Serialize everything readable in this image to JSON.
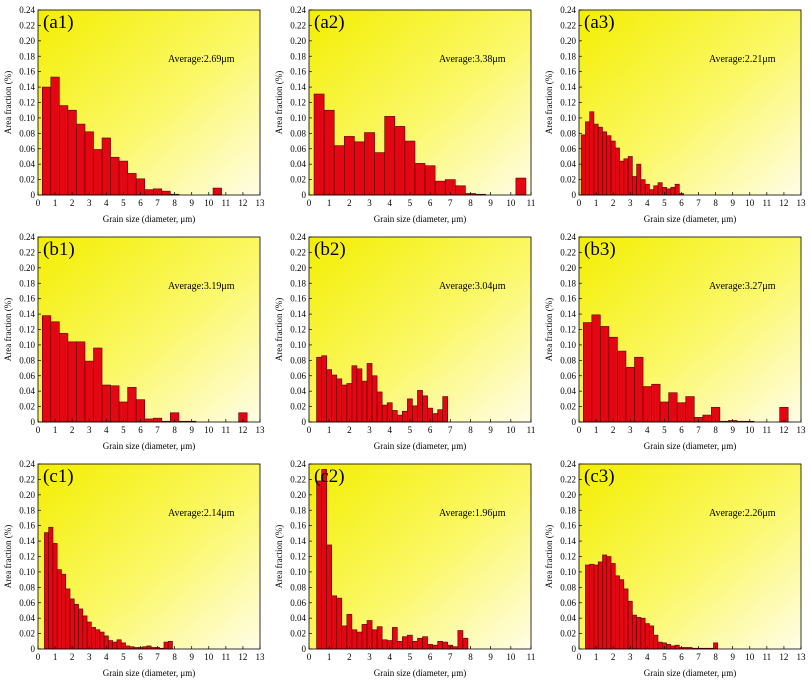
{
  "chart_data": [
    {
      "id": "a1",
      "type": "bar",
      "panel_label": "(a1)",
      "annotation": "Average:2.69μm",
      "xlabel": "Grain size (diameter, μm)",
      "ylabel": "Area fraction (%)",
      "xlim": [
        0,
        13
      ],
      "xticks": [
        0,
        1,
        2,
        3,
        4,
        5,
        6,
        7,
        8,
        9,
        10,
        11,
        12,
        13
      ],
      "ylim": [
        0,
        0.24
      ],
      "yticks": [
        "0",
        "0.02",
        "0.04",
        "0.06",
        "0.08",
        "0.10",
        "0.12",
        "0.14",
        "0.16",
        "0.18",
        "0.20",
        "0.22",
        "0.24"
      ],
      "bin_width": 0.5,
      "x": [
        0.5,
        1,
        1.5,
        2,
        2.5,
        3,
        3.5,
        4,
        4.5,
        5,
        5.5,
        6,
        6.5,
        7,
        7.5,
        8,
        10.5
      ],
      "values": [
        0.14,
        0.153,
        0.116,
        0.11,
        0.092,
        0.082,
        0.059,
        0.074,
        0.049,
        0.044,
        0.028,
        0.021,
        0.007,
        0.008,
        0.005,
        0.001,
        0.009
      ]
    },
    {
      "id": "a2",
      "type": "bar",
      "panel_label": "(a2)",
      "annotation": "Average:3.38μm",
      "xlabel": "Grain size (diameter, μm)",
      "ylabel": "Area fraction (%)",
      "xlim": [
        0,
        11
      ],
      "xticks": [
        0,
        1,
        2,
        3,
        4,
        5,
        6,
        7,
        8,
        9,
        10,
        11
      ],
      "ylim": [
        0,
        0.24
      ],
      "yticks": [
        "0",
        "0.02",
        "0.04",
        "0.06",
        "0.08",
        "0.10",
        "0.12",
        "0.14",
        "0.16",
        "0.18",
        "0.20",
        "0.22",
        "0.24"
      ],
      "bin_width": 0.5,
      "x": [
        0.5,
        1,
        1.5,
        2,
        2.5,
        3,
        3.5,
        4,
        4.5,
        5,
        5.5,
        6,
        6.5,
        7,
        7.5,
        8,
        8.5,
        10.5
      ],
      "values": [
        0.131,
        0.11,
        0.064,
        0.076,
        0.069,
        0.081,
        0.055,
        0.102,
        0.089,
        0.07,
        0.041,
        0.038,
        0.018,
        0.02,
        0.012,
        0.002,
        0.001,
        0.022
      ]
    },
    {
      "id": "a3",
      "type": "bar",
      "panel_label": "(a3)",
      "annotation": "Average:2.21μm",
      "xlabel": "Grain size (diameter, μm)",
      "ylabel": "Area fraction (%)",
      "xlim": [
        0,
        13
      ],
      "xticks": [
        0,
        1,
        2,
        3,
        4,
        5,
        6,
        7,
        8,
        9,
        10,
        11,
        12,
        13
      ],
      "ylim": [
        0,
        0.24
      ],
      "yticks": [
        "0",
        "0.02",
        "0.04",
        "0.06",
        "0.08",
        "0.10",
        "0.12",
        "0.14",
        "0.16",
        "0.18",
        "0.20",
        "0.22",
        "0.24"
      ],
      "bin_width": 0.25,
      "x": [
        0.25,
        0.5,
        0.75,
        1,
        1.25,
        1.5,
        1.75,
        2,
        2.25,
        2.5,
        2.75,
        3,
        3.25,
        3.5,
        3.75,
        4,
        4.25,
        4.5,
        4.75,
        5,
        5.25,
        5.5,
        5.75,
        6
      ],
      "values": [
        0.078,
        0.095,
        0.108,
        0.092,
        0.088,
        0.082,
        0.077,
        0.07,
        0.061,
        0.044,
        0.047,
        0.05,
        0.024,
        0.04,
        0.02,
        0.014,
        0.007,
        0.012,
        0.016,
        0.01,
        0.008,
        0.01,
        0.014,
        0.002
      ]
    },
    {
      "id": "b1",
      "type": "bar",
      "panel_label": "(b1)",
      "annotation": "Average:3.19μm",
      "xlabel": "Grain size (diameter, μm)",
      "ylabel": "Area fraction (%)",
      "xlim": [
        0,
        13
      ],
      "xticks": [
        0,
        1,
        2,
        3,
        4,
        5,
        6,
        7,
        8,
        9,
        10,
        11,
        12,
        13
      ],
      "ylim": [
        0,
        0.24
      ],
      "yticks": [
        "0",
        "0.02",
        "0.04",
        "0.06",
        "0.08",
        "0.10",
        "0.12",
        "0.14",
        "0.16",
        "0.18",
        "0.20",
        "0.22",
        "0.24"
      ],
      "bin_width": 0.5,
      "x": [
        0.5,
        1,
        1.5,
        2,
        2.5,
        3,
        3.5,
        4,
        4.5,
        5,
        5.5,
        6,
        6.5,
        7,
        7.5,
        8,
        8.5,
        9,
        12
      ],
      "values": [
        0.138,
        0.13,
        0.115,
        0.104,
        0.104,
        0.079,
        0.096,
        0.048,
        0.047,
        0.026,
        0.045,
        0.029,
        0.004,
        0.005,
        0.001,
        0.012,
        0.001,
        0.001,
        0.012
      ]
    },
    {
      "id": "b2",
      "type": "bar",
      "panel_label": "(b2)",
      "annotation": "Average:3.04μm",
      "xlabel": "Grain size (diameter, μm)",
      "ylabel": "Area fraction (%)",
      "xlim": [
        0,
        11
      ],
      "xticks": [
        0,
        1,
        2,
        3,
        4,
        5,
        6,
        7,
        8,
        9,
        10,
        11
      ],
      "ylim": [
        0,
        0.24
      ],
      "yticks": [
        "0",
        "0.02",
        "0.04",
        "0.06",
        "0.08",
        "0.10",
        "0.12",
        "0.14",
        "0.16",
        "0.18",
        "0.20",
        "0.22",
        "0.24"
      ],
      "bin_width": 0.25,
      "x": [
        0.5,
        0.75,
        1,
        1.25,
        1.5,
        1.75,
        2,
        2.25,
        2.5,
        2.75,
        3,
        3.25,
        3.5,
        3.75,
        4,
        4.25,
        4.5,
        4.75,
        5,
        5.25,
        5.5,
        5.75,
        6,
        6.25,
        6.5,
        6.75
      ],
      "values": [
        0.084,
        0.086,
        0.068,
        0.061,
        0.056,
        0.048,
        0.05,
        0.073,
        0.069,
        0.053,
        0.076,
        0.06,
        0.039,
        0.022,
        0.025,
        0.015,
        0.009,
        0.014,
        0.03,
        0.021,
        0.041,
        0.034,
        0.018,
        0.011,
        0.016,
        0.033
      ]
    },
    {
      "id": "b3",
      "type": "bar",
      "panel_label": "(b3)",
      "annotation": "Average:3.27μm",
      "xlabel": "Grain size (diameter, μm)",
      "ylabel": "Area fraction (%)",
      "xlim": [
        0,
        13
      ],
      "xticks": [
        0,
        1,
        2,
        3,
        4,
        5,
        6,
        7,
        8,
        9,
        10,
        11,
        12,
        13
      ],
      "ylim": [
        0,
        0.24
      ],
      "yticks": [
        "0",
        "0.02",
        "0.04",
        "0.06",
        "0.08",
        "0.10",
        "0.12",
        "0.14",
        "0.16",
        "0.18",
        "0.20",
        "0.22",
        "0.24"
      ],
      "bin_width": 0.5,
      "x": [
        0.5,
        1,
        1.5,
        2,
        2.5,
        3,
        3.5,
        4,
        4.5,
        5,
        5.5,
        6,
        6.5,
        7,
        7.5,
        8,
        8.5,
        9,
        9.5,
        10,
        12
      ],
      "values": [
        0.129,
        0.139,
        0.124,
        0.11,
        0.092,
        0.071,
        0.084,
        0.046,
        0.049,
        0.026,
        0.038,
        0.025,
        0.033,
        0.006,
        0.009,
        0.019,
        0.001,
        0.002,
        0.001,
        0.001,
        0.019
      ]
    },
    {
      "id": "c1",
      "type": "bar",
      "panel_label": "(c1)",
      "annotation": "Average:2.14μm",
      "xlabel": "Grain size (diameter, μm)",
      "ylabel": "Area fraction (%)",
      "xlim": [
        0,
        13
      ],
      "xticks": [
        0,
        1,
        2,
        3,
        4,
        5,
        6,
        7,
        8,
        9,
        10,
        11,
        12,
        13
      ],
      "ylim": [
        0,
        0.24
      ],
      "yticks": [
        "0",
        "0.02",
        "0.04",
        "0.06",
        "0.08",
        "0.10",
        "0.12",
        "0.14",
        "0.16",
        "0.18",
        "0.20",
        "0.22",
        "0.24"
      ],
      "bin_width": 0.25,
      "x": [
        0.5,
        0.75,
        1,
        1.25,
        1.5,
        1.75,
        2,
        2.25,
        2.5,
        2.75,
        3,
        3.25,
        3.5,
        3.75,
        4,
        4.25,
        4.5,
        4.75,
        5,
        5.25,
        5.5,
        5.75,
        6,
        6.25,
        6.5,
        6.75,
        7,
        7.25,
        7.5,
        7.75
      ],
      "values": [
        0.151,
        0.158,
        0.137,
        0.103,
        0.097,
        0.078,
        0.065,
        0.058,
        0.052,
        0.043,
        0.035,
        0.028,
        0.025,
        0.022,
        0.017,
        0.011,
        0.009,
        0.012,
        0.008,
        0.004,
        0.003,
        0.002,
        0.002,
        0.003,
        0.004,
        0.002,
        0.002,
        0.001,
        0.009,
        0.01
      ]
    },
    {
      "id": "c2",
      "type": "bar",
      "panel_label": "(c2)",
      "annotation": "Average:1.96μm",
      "xlabel": "Grain size (diameter, μm)",
      "ylabel": "Area fraction (%)",
      "xlim": [
        0,
        11
      ],
      "xticks": [
        0,
        1,
        2,
        3,
        4,
        5,
        6,
        7,
        8,
        9,
        10,
        11
      ],
      "ylim": [
        0,
        0.24
      ],
      "yticks": [
        "0",
        "0.02",
        "0.04",
        "0.06",
        "0.08",
        "0.10",
        "0.12",
        "0.14",
        "0.16",
        "0.18",
        "0.20",
        "0.22",
        "0.24"
      ],
      "bin_width": 0.25,
      "x": [
        0.5,
        0.75,
        1,
        1.25,
        1.5,
        1.75,
        2,
        2.25,
        2.5,
        2.75,
        3,
        3.25,
        3.5,
        3.75,
        4,
        4.25,
        4.5,
        4.75,
        5,
        5.25,
        5.5,
        5.75,
        6,
        6.25,
        6.5,
        6.75,
        7,
        7.25,
        7.5,
        7.75
      ],
      "values": [
        0.218,
        0.233,
        0.135,
        0.069,
        0.066,
        0.03,
        0.045,
        0.025,
        0.022,
        0.032,
        0.037,
        0.025,
        0.029,
        0.012,
        0.011,
        0.028,
        0.01,
        0.016,
        0.018,
        0.01,
        0.014,
        0.016,
        0.006,
        0.005,
        0.01,
        0.009,
        0.005,
        0.003,
        0.024,
        0.014
      ]
    },
    {
      "id": "c3",
      "type": "bar",
      "panel_label": "(c3)",
      "annotation": "Average:2.26μm",
      "xlabel": "Grain size (diameter, μm)",
      "ylabel": "Area fraction (%)",
      "xlim": [
        0,
        13
      ],
      "xticks": [
        0,
        1,
        2,
        3,
        4,
        5,
        6,
        7,
        8,
        9,
        10,
        11,
        12,
        13
      ],
      "ylim": [
        0,
        0.24
      ],
      "yticks": [
        "0",
        "0.02",
        "0.04",
        "0.06",
        "0.08",
        "0.10",
        "0.12",
        "0.14",
        "0.16",
        "0.18",
        "0.20",
        "0.22",
        "0.24"
      ],
      "bin_width": 0.25,
      "x": [
        0.5,
        0.75,
        1,
        1.25,
        1.5,
        1.75,
        2,
        2.25,
        2.5,
        2.75,
        3,
        3.25,
        3.5,
        3.75,
        4,
        4.25,
        4.5,
        4.75,
        5,
        5.25,
        5.5,
        5.75,
        6,
        6.25,
        6.5,
        6.75,
        7,
        7.25,
        7.5,
        7.75,
        8
      ],
      "values": [
        0.109,
        0.11,
        0.109,
        0.113,
        0.122,
        0.12,
        0.111,
        0.095,
        0.09,
        0.078,
        0.062,
        0.044,
        0.041,
        0.04,
        0.033,
        0.03,
        0.018,
        0.009,
        0.008,
        0.006,
        0.004,
        0.005,
        0.002,
        0.002,
        0.002,
        0.001,
        0.001,
        0.001,
        0.001,
        0.001,
        0.008
      ]
    }
  ]
}
